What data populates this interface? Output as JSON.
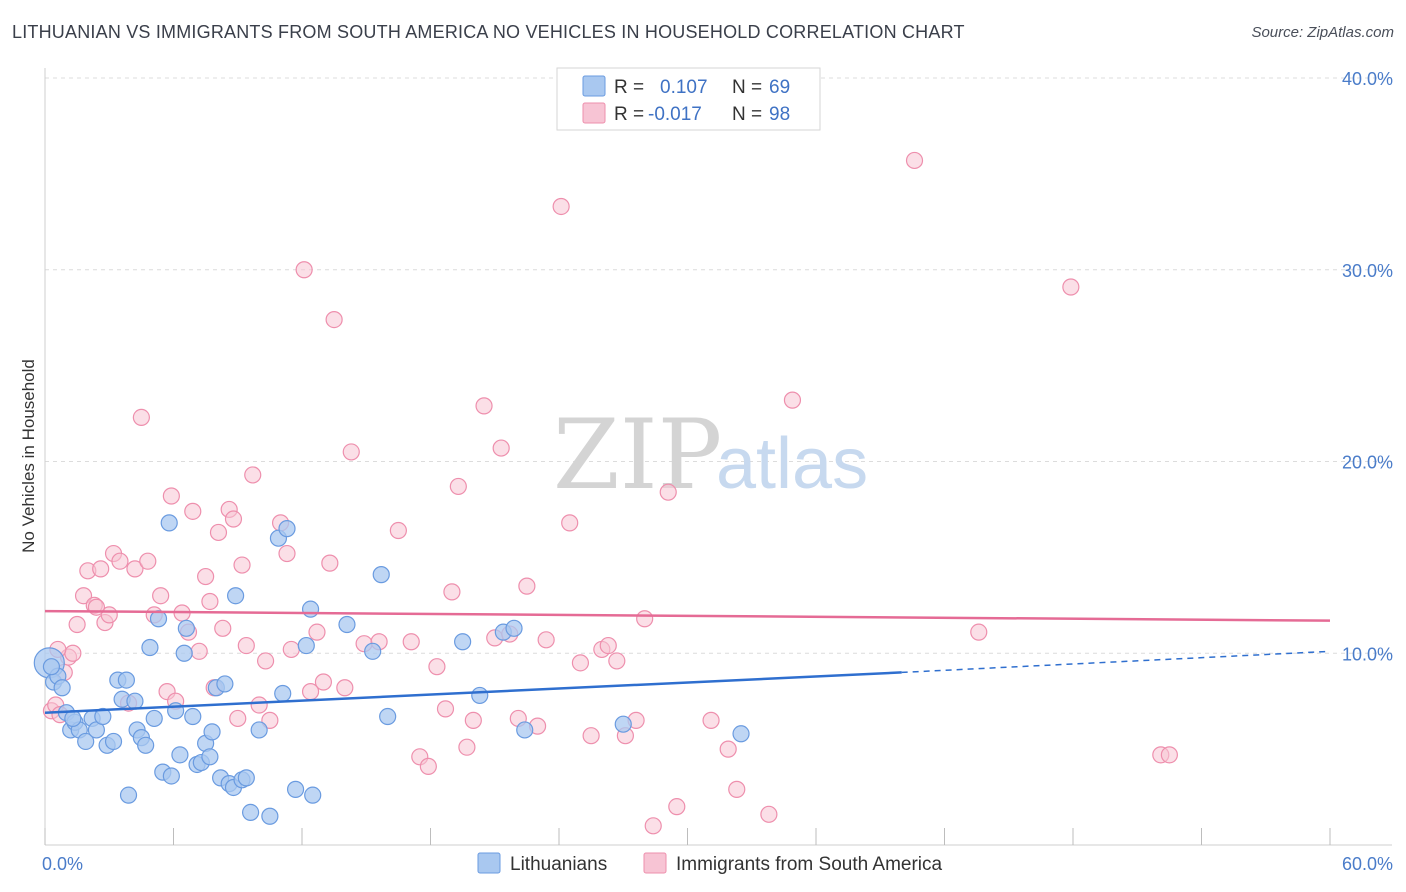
{
  "title": "LITHUANIAN VS IMMIGRANTS FROM SOUTH AMERICA NO VEHICLES IN HOUSEHOLD CORRELATION CHART",
  "source": "Source: ZipAtlas.com",
  "watermark": {
    "zip": "ZIP",
    "atlas": "atlas"
  },
  "legend": {
    "r_label": "R =",
    "n_label": "N =",
    "rows": [
      {
        "r": "0.107",
        "n": "69"
      },
      {
        "r": "-0.017",
        "n": "98"
      }
    ]
  },
  "colors": {
    "blue_fill": "#a9c8f0",
    "blue_stroke": "#6a9be0",
    "blue_line": "#2f6fcf",
    "pink_fill": "#f7c4d4",
    "pink_stroke": "#ee8fad",
    "pink_line": "#e56b95",
    "tick_text": "#4a7cc9"
  },
  "chart_data": {
    "type": "scatter",
    "title": "LITHUANIAN VS IMMIGRANTS FROM SOUTH AMERICA NO VEHICLES IN HOUSEHOLD CORRELATION CHART",
    "xlabel": "",
    "ylabel": "No Vehicles in Household",
    "xlim": [
      0,
      60
    ],
    "ylim": [
      0,
      40
    ],
    "x_tick_labels": [
      "0.0%",
      "60.0%"
    ],
    "y_tick_labels": [
      "10.0%",
      "20.0%",
      "30.0%",
      "40.0%"
    ],
    "y_ticks": [
      10,
      20,
      30,
      40
    ],
    "grid": true,
    "legend_position": "top-center",
    "series": [
      {
        "name": "Lithuanians",
        "r": 0.107,
        "n": 69,
        "trend": {
          "x": [
            0,
            40,
            60
          ],
          "y": [
            6.9,
            9.0,
            10.1
          ],
          "solid_until": 40
        },
        "points": [
          [
            0.2,
            9.5
          ],
          [
            0.4,
            8.5
          ],
          [
            0.6,
            8.8
          ],
          [
            0.8,
            8.2
          ],
          [
            1.0,
            6.9
          ],
          [
            1.2,
            6.0
          ],
          [
            1.4,
            6.4
          ],
          [
            1.6,
            6.0
          ],
          [
            1.9,
            5.4
          ],
          [
            2.2,
            6.6
          ],
          [
            2.4,
            6.0
          ],
          [
            2.7,
            6.7
          ],
          [
            2.9,
            5.2
          ],
          [
            3.2,
            5.4
          ],
          [
            3.4,
            8.6
          ],
          [
            3.6,
            7.6
          ],
          [
            3.8,
            8.6
          ],
          [
            3.9,
            2.6
          ],
          [
            4.2,
            7.5
          ],
          [
            4.3,
            6.0
          ],
          [
            4.5,
            5.6
          ],
          [
            4.7,
            5.2
          ],
          [
            4.9,
            10.3
          ],
          [
            5.1,
            6.6
          ],
          [
            5.3,
            11.8
          ],
          [
            5.5,
            3.8
          ],
          [
            5.8,
            16.8
          ],
          [
            5.9,
            3.6
          ],
          [
            6.1,
            7.0
          ],
          [
            6.3,
            4.7
          ],
          [
            6.5,
            10.0
          ],
          [
            6.6,
            11.3
          ],
          [
            6.9,
            6.7
          ],
          [
            7.1,
            4.2
          ],
          [
            7.3,
            4.3
          ],
          [
            7.5,
            5.3
          ],
          [
            7.7,
            4.6
          ],
          [
            7.8,
            5.9
          ],
          [
            8.0,
            8.2
          ],
          [
            8.2,
            3.5
          ],
          [
            8.4,
            8.4
          ],
          [
            8.6,
            3.2
          ],
          [
            8.8,
            3.0
          ],
          [
            8.9,
            13.0
          ],
          [
            9.2,
            3.4
          ],
          [
            9.4,
            3.5
          ],
          [
            9.6,
            1.7
          ],
          [
            10.0,
            6.0
          ],
          [
            10.5,
            1.5
          ],
          [
            10.9,
            16.0
          ],
          [
            11.1,
            7.9
          ],
          [
            11.3,
            16.5
          ],
          [
            11.7,
            2.9
          ],
          [
            12.2,
            10.4
          ],
          [
            12.4,
            12.3
          ],
          [
            12.5,
            2.6
          ],
          [
            14.1,
            11.5
          ],
          [
            15.3,
            10.1
          ],
          [
            15.7,
            14.1
          ],
          [
            16.0,
            6.7
          ],
          [
            19.5,
            10.6
          ],
          [
            20.3,
            7.8
          ],
          [
            21.4,
            11.1
          ],
          [
            21.9,
            11.3
          ],
          [
            22.4,
            6.0
          ],
          [
            27.0,
            6.3
          ],
          [
            32.5,
            5.8
          ],
          [
            1.3,
            6.6
          ],
          [
            0.3,
            9.3
          ]
        ]
      },
      {
        "name": "Immigrants from South America",
        "r": -0.017,
        "n": 98,
        "trend": {
          "x": [
            0,
            60
          ],
          "y": [
            12.2,
            11.7
          ]
        },
        "points": [
          [
            0.3,
            7.0
          ],
          [
            0.5,
            7.3
          ],
          [
            0.7,
            6.8
          ],
          [
            0.9,
            9.0
          ],
          [
            1.1,
            9.8
          ],
          [
            1.3,
            10.0
          ],
          [
            1.5,
            11.5
          ],
          [
            1.8,
            13.0
          ],
          [
            2.0,
            14.3
          ],
          [
            2.3,
            12.5
          ],
          [
            2.6,
            14.4
          ],
          [
            2.8,
            11.6
          ],
          [
            3.0,
            12.0
          ],
          [
            3.2,
            15.2
          ],
          [
            3.5,
            14.8
          ],
          [
            3.9,
            7.4
          ],
          [
            4.2,
            14.4
          ],
          [
            4.5,
            22.3
          ],
          [
            4.8,
            14.8
          ],
          [
            5.1,
            12.0
          ],
          [
            5.4,
            13.0
          ],
          [
            5.7,
            8.0
          ],
          [
            5.9,
            18.2
          ],
          [
            6.1,
            7.5
          ],
          [
            6.4,
            12.1
          ],
          [
            6.7,
            11.1
          ],
          [
            6.9,
            17.4
          ],
          [
            7.2,
            10.1
          ],
          [
            7.5,
            14.0
          ],
          [
            7.7,
            12.7
          ],
          [
            7.9,
            8.2
          ],
          [
            8.1,
            16.3
          ],
          [
            8.3,
            11.3
          ],
          [
            8.6,
            17.5
          ],
          [
            8.8,
            17.0
          ],
          [
            9.0,
            6.6
          ],
          [
            9.2,
            14.6
          ],
          [
            9.4,
            10.4
          ],
          [
            9.7,
            19.3
          ],
          [
            10.0,
            7.3
          ],
          [
            10.3,
            9.6
          ],
          [
            10.5,
            6.5
          ],
          [
            11.0,
            16.8
          ],
          [
            11.3,
            15.2
          ],
          [
            11.5,
            10.2
          ],
          [
            12.1,
            30.0
          ],
          [
            12.4,
            8.0
          ],
          [
            12.7,
            11.1
          ],
          [
            13.0,
            8.5
          ],
          [
            13.3,
            14.7
          ],
          [
            13.5,
            27.4
          ],
          [
            14.0,
            8.2
          ],
          [
            14.3,
            20.5
          ],
          [
            14.9,
            10.5
          ],
          [
            15.6,
            10.6
          ],
          [
            16.5,
            16.4
          ],
          [
            17.1,
            10.6
          ],
          [
            17.5,
            4.6
          ],
          [
            17.9,
            4.1
          ],
          [
            18.3,
            9.3
          ],
          [
            18.7,
            7.1
          ],
          [
            19.0,
            13.2
          ],
          [
            19.3,
            18.7
          ],
          [
            19.7,
            5.1
          ],
          [
            20.0,
            6.5
          ],
          [
            20.5,
            22.9
          ],
          [
            21.0,
            10.8
          ],
          [
            21.3,
            20.7
          ],
          [
            21.7,
            11.0
          ],
          [
            22.1,
            6.6
          ],
          [
            22.5,
            13.5
          ],
          [
            23.0,
            6.2
          ],
          [
            23.4,
            10.7
          ],
          [
            24.1,
            33.3
          ],
          [
            24.5,
            16.8
          ],
          [
            25.0,
            9.5
          ],
          [
            25.5,
            5.7
          ],
          [
            26.0,
            10.2
          ],
          [
            26.3,
            10.4
          ],
          [
            26.7,
            9.6
          ],
          [
            27.1,
            5.7
          ],
          [
            27.6,
            6.5
          ],
          [
            28.0,
            11.8
          ],
          [
            28.4,
            1.0
          ],
          [
            29.1,
            18.4
          ],
          [
            29.5,
            2.0
          ],
          [
            31.1,
            6.5
          ],
          [
            31.9,
            5.0
          ],
          [
            32.3,
            2.9
          ],
          [
            33.8,
            1.6
          ],
          [
            34.9,
            23.2
          ],
          [
            40.6,
            35.7
          ],
          [
            43.6,
            11.1
          ],
          [
            47.9,
            29.1
          ],
          [
            52.1,
            4.7
          ],
          [
            52.5,
            4.7
          ],
          [
            0.6,
            10.2
          ],
          [
            2.4,
            12.4
          ]
        ]
      }
    ]
  }
}
